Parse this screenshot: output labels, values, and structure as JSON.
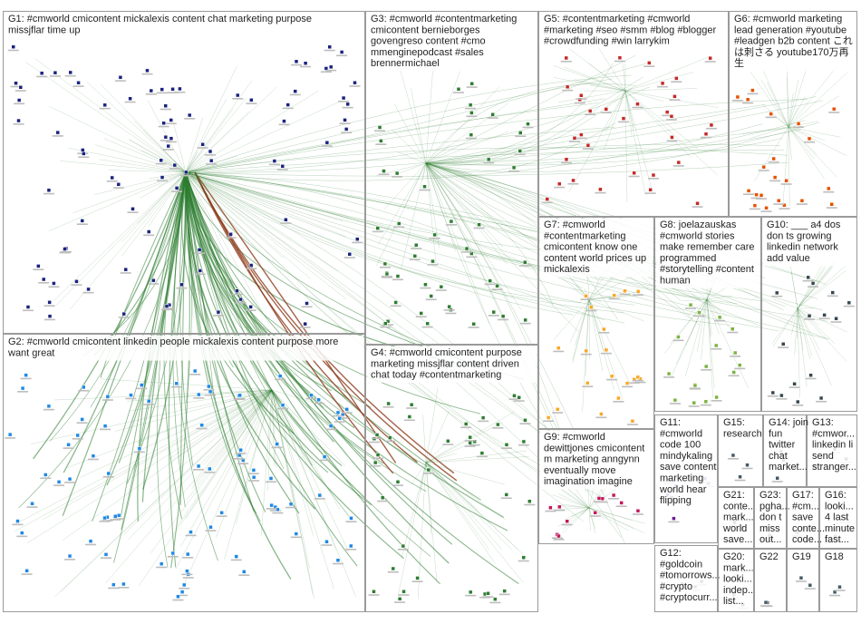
{
  "diagram": {
    "groups": [
      {
        "id": "G1",
        "lines": [
          "G1: #cmworld cmicontent mickalexis content chat marketing purpose",
          "missjflar time up"
        ],
        "color": "#1a237e"
      },
      {
        "id": "G2",
        "lines": [
          "G2: #cmworld cmicontent linkedin people mickalexis content purpose more",
          "want great"
        ],
        "color": "#1e88e5"
      },
      {
        "id": "G3",
        "lines": [
          "G3: #cmworld #contentmarketing",
          "cmicontent bernieborges",
          "govengreso content #cmo",
          "mmenginepodcast #sales",
          "brennermichael"
        ],
        "color": "#2e7d32"
      },
      {
        "id": "G4",
        "lines": [
          "G4: #cmworld cmicontent purpose",
          "marketing missjflar content driven",
          "chat today #contentmarketing"
        ],
        "color": "#2e7d32"
      },
      {
        "id": "G5",
        "lines": [
          "G5: #contentmarketing #cmworld",
          "#marketing #seo #smm #blog #blogger",
          "#crowdfunding #win larrykim"
        ],
        "color": "#c62828"
      },
      {
        "id": "G6",
        "lines": [
          "G6: #cmworld marketing",
          "lead generation #youtube",
          "#leadgen b2b content これ",
          "は刺さる youtube170万再",
          "生"
        ],
        "color": "#e65100"
      },
      {
        "id": "G7",
        "lines": [
          "G7: #cmworld",
          "#contentmarketing",
          "cmicontent know one",
          "content world prices up",
          "mickalexis"
        ],
        "color": "#f9a825"
      },
      {
        "id": "G8",
        "lines": [
          "G8: joelazauskas",
          "#cmworld stories",
          "make remember care",
          "programmed",
          "#storytelling #content",
          "human"
        ],
        "color": "#7cb342"
      },
      {
        "id": "G9",
        "lines": [
          "G9: #cmworld",
          "dewittjones cmicontent",
          "m marketing anngynn",
          "eventually move",
          "imagination imagine"
        ],
        "color": "#c2185b"
      },
      {
        "id": "G10",
        "lines": [
          "G10: ___ a4 dos",
          "don ts growing",
          "linkedin network",
          "add value"
        ],
        "color": "#37474f"
      },
      {
        "id": "G11",
        "lines": [
          "G11:",
          "#cmworld",
          "code 100",
          "mindykaling",
          "save content",
          "marketing",
          "world hear",
          "flipping"
        ],
        "color": "#6a1b9a"
      },
      {
        "id": "G12",
        "lines": [
          "G12:",
          "#goldcoin",
          "#tomorrows...",
          "#crypto",
          "#cryptocurr..."
        ],
        "color": "#455a64"
      },
      {
        "id": "G13",
        "lines": [
          "G13:",
          "#cmwor...",
          "linkedin li",
          "send",
          "stranger..."
        ],
        "color": "#455a64"
      },
      {
        "id": "G14",
        "lines": [
          "G14: join",
          "fun",
          "twitter",
          "chat",
          "market..."
        ],
        "color": "#455a64"
      },
      {
        "id": "G15",
        "lines": [
          "G15:",
          "research"
        ],
        "color": "#455a64"
      },
      {
        "id": "G16",
        "lines": [
          "G16:",
          "looki...",
          "4 last",
          "minute",
          "fast..."
        ],
        "color": "#455a64"
      },
      {
        "id": "G17",
        "lines": [
          "G17:",
          "#cm...",
          "save",
          "conte...",
          "code..."
        ],
        "color": "#455a64"
      },
      {
        "id": "G18",
        "lines": [
          "G18"
        ],
        "color": "#455a64"
      },
      {
        "id": "G19",
        "lines": [
          "G19"
        ],
        "color": "#455a64"
      },
      {
        "id": "G20",
        "lines": [
          "G20:",
          "mark...",
          "looki...",
          "indep...",
          "list..."
        ],
        "color": "#455a64"
      },
      {
        "id": "G21",
        "lines": [
          "G21:",
          "conte...",
          "mark...",
          "world",
          "save..."
        ],
        "color": "#455a64"
      },
      {
        "id": "G22",
        "lines": [
          "G22"
        ],
        "color": "#455a64"
      },
      {
        "id": "G23",
        "lines": [
          "G23:",
          "pgha...",
          "don t",
          "miss",
          "out..."
        ],
        "color": "#455a64"
      }
    ],
    "colors": {
      "edge": "#2e7d32",
      "edge_highlight": "#8d3b1a",
      "border": "#9a9a9a",
      "background": "#ffffff"
    },
    "node_icon": "node-square-icon"
  }
}
